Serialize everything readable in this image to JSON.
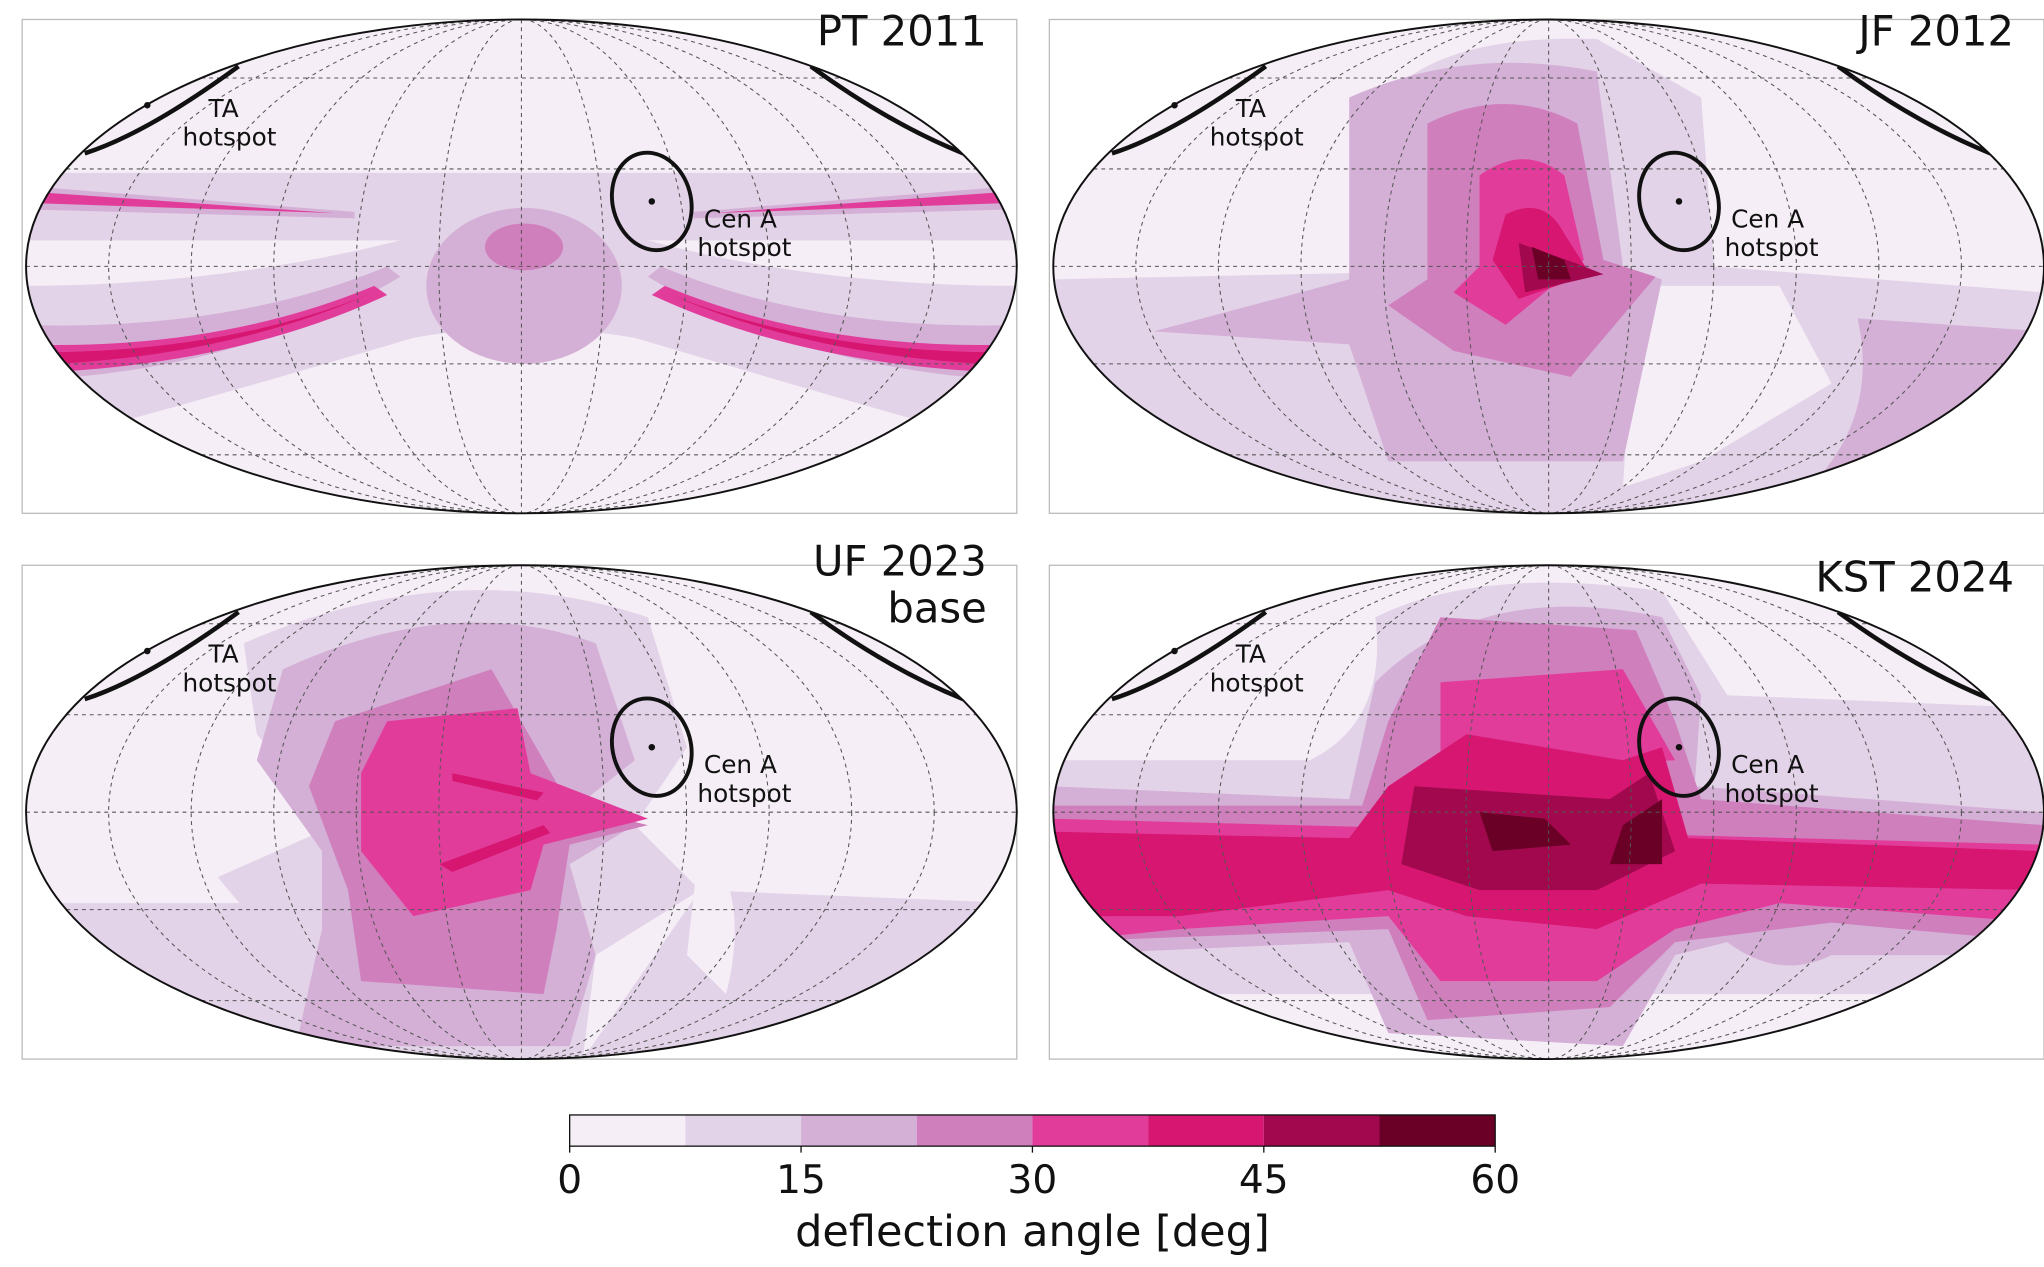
{
  "chart_data": {
    "type": "colorbar",
    "label": "deflection angle [deg]",
    "levels": [
      0,
      7.5,
      15,
      22.5,
      30,
      37.5,
      45,
      52.5,
      60
    ],
    "colors": [
      "#f5eef6",
      "#e3d3e8",
      "#d4b0d7",
      "#d07fbd",
      "#e23c9b",
      "#d61670",
      "#a1084e",
      "#6a0026"
    ],
    "xlim": [
      0,
      60
    ],
    "xticks": [
      0,
      15,
      30,
      45,
      60
    ]
  },
  "panels": [
    {
      "title": [
        "PT 2011"
      ],
      "ta_label": [
        "TA",
        "hotspot"
      ],
      "cena_label": [
        "Cen A",
        "hotspot"
      ]
    },
    {
      "title": [
        "JF 2012"
      ],
      "ta_label": [
        "TA",
        "hotspot"
      ],
      "cena_label": [
        "Cen A",
        "hotspot"
      ]
    },
    {
      "title": [
        "UF 2023",
        "base"
      ],
      "ta_label": [
        "TA",
        "hotspot"
      ],
      "cena_label": [
        "Cen A",
        "hotspot"
      ]
    },
    {
      "title": [
        "KST 2024"
      ],
      "ta_label": [
        "TA",
        "hotspot"
      ],
      "cena_label": [
        "Cen A",
        "hotspot"
      ]
    }
  ]
}
